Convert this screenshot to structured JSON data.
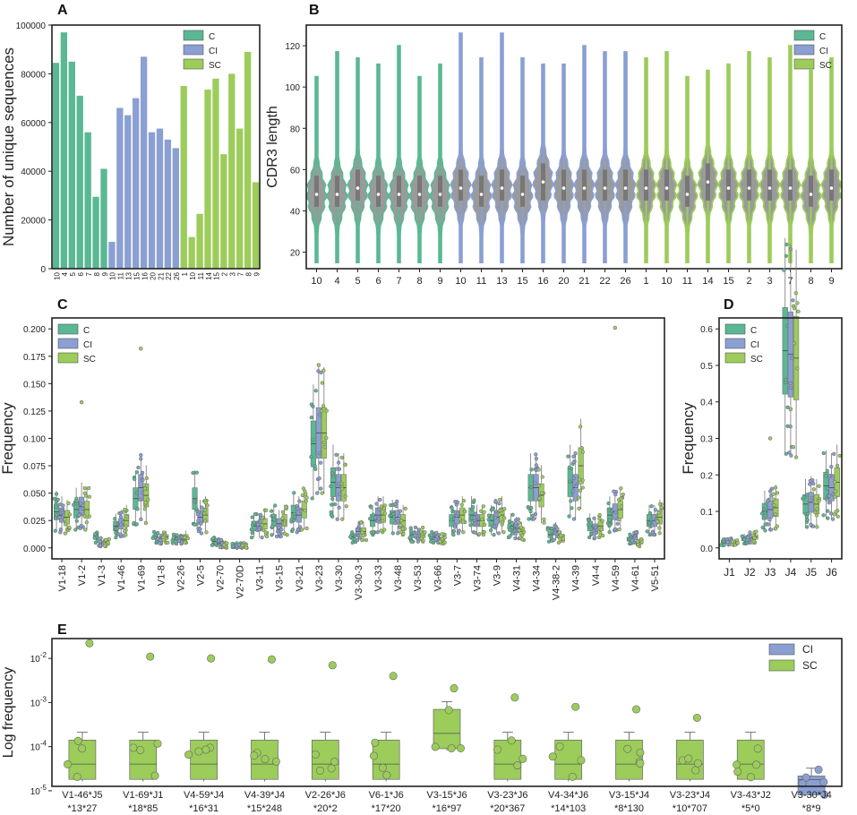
{
  "colors": {
    "C": "#5ab894",
    "CI": "#8a9fd2",
    "SC": "#9ccc5a",
    "axis": "#222222",
    "median": "#444444"
  },
  "panels": {
    "A": {
      "label": "A",
      "chart_data": {
        "type": "bar",
        "ylabel": "Number of unique sequences",
        "ylim": [
          0,
          100000
        ],
        "yticks": [
          0,
          20000,
          40000,
          60000,
          80000,
          100000
        ],
        "legend": [
          "C",
          "CI",
          "SC"
        ],
        "legend_position": "top-right",
        "groups": [
          {
            "name": "C",
            "categories": [
              "10",
              "4",
              "5",
              "6",
              "7",
              "8",
              "9"
            ],
            "values": [
              84500,
              97000,
              85000,
              71000,
              56000,
              29500,
              41000
            ]
          },
          {
            "name": "CI",
            "categories": [
              "10",
              "11",
              "13",
              "15",
              "16",
              "20",
              "21",
              "22",
              "26"
            ],
            "values": [
              11000,
              66000,
              63000,
              70000,
              87000,
              56000,
              57500,
              53000,
              49500
            ]
          },
          {
            "name": "SC",
            "categories": [
              "1",
              "10",
              "11",
              "14",
              "15",
              "2",
              "3",
              "7",
              "8",
              "9"
            ],
            "values": [
              75000,
              13000,
              22500,
              73500,
              78000,
              47000,
              80000,
              57500,
              89000,
              35500
            ]
          }
        ]
      }
    },
    "B": {
      "label": "B",
      "chart_data": {
        "type": "violin",
        "ylabel": "CDR3 length",
        "ylim": [
          12,
          130
        ],
        "yticks": [
          20,
          40,
          60,
          80,
          100,
          120
        ],
        "legend": [
          "C",
          "CI",
          "SC"
        ],
        "legend_position": "top-right",
        "categories": [
          "10",
          "4",
          "5",
          "6",
          "7",
          "8",
          "9",
          "10",
          "11",
          "13",
          "15",
          "16",
          "20",
          "21",
          "22",
          "26",
          "1",
          "10",
          "11",
          "14",
          "15",
          "2",
          "3",
          "7",
          "8",
          "9"
        ],
        "group": [
          "C",
          "C",
          "C",
          "C",
          "C",
          "C",
          "C",
          "CI",
          "CI",
          "CI",
          "CI",
          "CI",
          "CI",
          "CI",
          "CI",
          "CI",
          "SC",
          "SC",
          "SC",
          "SC",
          "SC",
          "SC",
          "SC",
          "SC",
          "SC",
          "SC"
        ],
        "max": [
          105,
          117,
          114,
          111,
          120,
          105,
          111,
          126,
          114,
          126,
          114,
          111,
          111,
          120,
          117,
          117,
          114,
          117,
          105,
          108,
          111,
          117,
          114,
          120,
          108,
          114
        ],
        "median": [
          48,
          48,
          51,
          48,
          48,
          48,
          48,
          51,
          48,
          51,
          48,
          54,
          51,
          51,
          51,
          51,
          51,
          51,
          48,
          54,
          51,
          51,
          51,
          51,
          48,
          51
        ],
        "q1": [
          42,
          42,
          45,
          42,
          42,
          42,
          42,
          45,
          42,
          45,
          42,
          45,
          45,
          45,
          45,
          45,
          45,
          45,
          42,
          45,
          45,
          45,
          45,
          45,
          42,
          45
        ],
        "q3": [
          57,
          57,
          60,
          57,
          57,
          57,
          57,
          60,
          57,
          60,
          57,
          63,
          60,
          60,
          60,
          60,
          60,
          60,
          57,
          63,
          60,
          60,
          60,
          60,
          57,
          60
        ],
        "min": [
          15,
          15,
          15,
          15,
          15,
          15,
          15,
          15,
          15,
          15,
          15,
          15,
          15,
          15,
          15,
          15,
          15,
          15,
          15,
          15,
          15,
          15,
          15,
          15,
          15,
          15
        ]
      }
    },
    "C": {
      "label": "C",
      "chart_data": {
        "type": "boxplot",
        "ylabel": "Frequency",
        "ylim": [
          -0.01,
          0.21
        ],
        "yticks": [
          0.0,
          0.025,
          0.05,
          0.075,
          0.1,
          0.125,
          0.15,
          0.175,
          0.2
        ],
        "ytick_labels": [
          "0.000",
          "0.025",
          "0.050",
          "0.075",
          "0.100",
          "0.125",
          "0.150",
          "0.175",
          "0.200"
        ],
        "legend": [
          "C",
          "CI",
          "SC"
        ],
        "legend_position": "top-left",
        "categories": [
          "V1-18",
          "V1-2",
          "V1-3",
          "V1-46",
          "V1-69",
          "V1-8",
          "V2-26",
          "V2-5",
          "V2-70",
          "V2-70D",
          "V3-11",
          "V3-15",
          "V3-21",
          "V3-23",
          "V3-30",
          "V3-30-3",
          "V3-33",
          "V3-48",
          "V3-53",
          "V3-66",
          "V3-7",
          "V3-74",
          "V3-9",
          "V4-31",
          "V4-34",
          "V4-38-2",
          "V4-39",
          "V4-4",
          "V4-59",
          "V4-61",
          "V5-51"
        ],
        "medians_C": [
          0.033,
          0.035,
          0.01,
          0.02,
          0.045,
          0.01,
          0.008,
          0.045,
          0.006,
          0.001,
          0.02,
          0.025,
          0.032,
          0.095,
          0.06,
          0.01,
          0.025,
          0.028,
          0.012,
          0.01,
          0.025,
          0.03,
          0.025,
          0.02,
          0.055,
          0.012,
          0.06,
          0.02,
          0.03,
          0.008,
          0.025
        ],
        "medians_CI": [
          0.03,
          0.038,
          0.005,
          0.022,
          0.055,
          0.008,
          0.008,
          0.028,
          0.004,
          0.001,
          0.02,
          0.022,
          0.03,
          0.105,
          0.055,
          0.015,
          0.03,
          0.028,
          0.012,
          0.01,
          0.028,
          0.025,
          0.028,
          0.018,
          0.055,
          0.015,
          0.055,
          0.018,
          0.033,
          0.01,
          0.025
        ],
        "medians_SC": [
          0.028,
          0.035,
          0.005,
          0.025,
          0.048,
          0.01,
          0.01,
          0.03,
          0.003,
          0.001,
          0.022,
          0.025,
          0.035,
          0.105,
          0.055,
          0.015,
          0.03,
          0.025,
          0.012,
          0.008,
          0.03,
          0.025,
          0.03,
          0.015,
          0.048,
          0.01,
          0.075,
          0.02,
          0.035,
          0.005,
          0.028
        ],
        "outliers": [
          {
            "category": "V1-2",
            "value": 0.133
          },
          {
            "category": "V1-69",
            "value": 0.182
          },
          {
            "category": "V3-23",
            "value": 0.167
          },
          {
            "category": "V4-59",
            "value": 0.201
          }
        ]
      }
    },
    "D": {
      "label": "D",
      "chart_data": {
        "type": "boxplot",
        "ylabel": "Frequency",
        "ylim": [
          -0.03,
          0.63
        ],
        "yticks": [
          0.0,
          0.1,
          0.2,
          0.3,
          0.4,
          0.5,
          0.6
        ],
        "ytick_labels": [
          "0.0",
          "0.1",
          "0.2",
          "0.3",
          "0.4",
          "0.5",
          "0.6"
        ],
        "legend": [
          "C",
          "CI",
          "SC"
        ],
        "legend_position": "top-left",
        "categories": [
          "J1",
          "J2",
          "J3",
          "J4",
          "J5",
          "J6"
        ],
        "medians_C": [
          0.015,
          0.025,
          0.1,
          0.54,
          0.12,
          0.17
        ],
        "medians_CI": [
          0.018,
          0.03,
          0.105,
          0.53,
          0.125,
          0.165
        ],
        "medians_SC": [
          0.016,
          0.03,
          0.11,
          0.52,
          0.12,
          0.18
        ],
        "outliers": [
          {
            "category": "J3",
            "value": 0.3
          },
          {
            "category": "J4",
            "value": 0.38
          }
        ]
      }
    },
    "E": {
      "label": "E",
      "chart_data": {
        "type": "boxplot",
        "ylabel": "Log frequency",
        "yscale": "log",
        "ylim_log10": [
          -4.9,
          -1.55
        ],
        "yticks": [
          "10^-5",
          "10^-4",
          "10^-3",
          "10^-2"
        ],
        "legend": [
          "CI",
          "SC"
        ],
        "legend_position": "top-right",
        "categories": [
          "V1-46*J5",
          "V1-69*J1",
          "V4-59*J4",
          "V4-39*J4",
          "V2-26*J6",
          "V6-1*J6",
          "V3-15*J6",
          "V3-23*J6",
          "V4-34*J6",
          "V3-15*J4",
          "V3-23*J4",
          "V3-43*J2",
          "V3-30*J4"
        ],
        "sublabels": [
          "*13*27",
          "*18*85",
          "*16*31",
          "*15*248",
          "*20*2",
          "*17*20",
          "*16*97",
          "*20*367",
          "*14*103",
          "*8*130",
          "*10*707",
          "*5*0",
          "*8*9"
        ],
        "outlier_values": [
          0.022,
          0.011,
          0.01,
          0.0095,
          0.007,
          0.004,
          0.0021,
          0.0013,
          0.0008,
          0.0007,
          0.00045,
          9e-05,
          3e-05
        ],
        "group": [
          "SC",
          "SC",
          "SC",
          "SC",
          "SC",
          "SC",
          "SC",
          "SC",
          "SC",
          "SC",
          "SC",
          "SC",
          "CI"
        ]
      }
    }
  }
}
